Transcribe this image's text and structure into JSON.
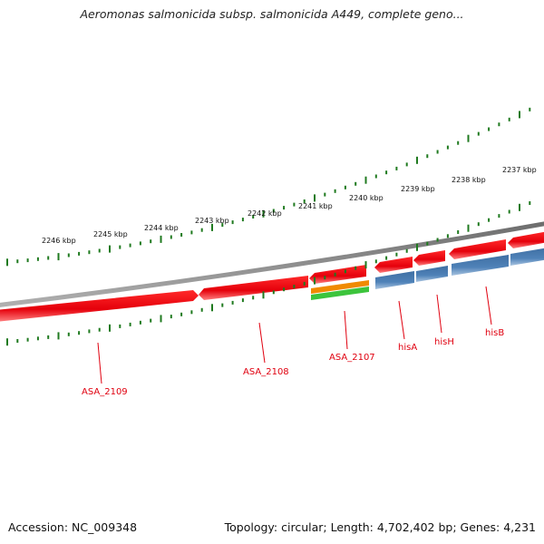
{
  "title": "Aeromonas salmonicida subsp. salmonicida A449, complete geno...",
  "footer": {
    "accession": "Accession: NC_009348",
    "summary": "Topology: circular; Length: 4,702,402 bp; Genes: 4,231"
  },
  "scale": {
    "ticks": [
      "2246 kbp",
      "2245 kbp",
      "2244 kbp",
      "2243 kbp",
      "2242 kbp",
      "2241 kbp",
      "2240 kbp",
      "2239 kbp",
      "2238 kbp",
      "2237 kbp"
    ]
  },
  "genes": [
    {
      "name": "ASA_2109",
      "strand": "reverse"
    },
    {
      "name": "ASA_2108",
      "strand": "reverse"
    },
    {
      "name": "ASA_2107",
      "strand": "reverse"
    },
    {
      "name": "hisA",
      "strand": "reverse"
    },
    {
      "name": "hisH",
      "strand": "reverse"
    },
    {
      "name": "hisB",
      "strand": "reverse"
    }
  ],
  "colors": {
    "backbone": "#8a8a8a",
    "cds": "#e5000b",
    "ruler": "#1f7a1f",
    "feature_orange": "#f08a00",
    "feature_green": "#3cc43c",
    "feature_blue": "#4f82b8"
  }
}
